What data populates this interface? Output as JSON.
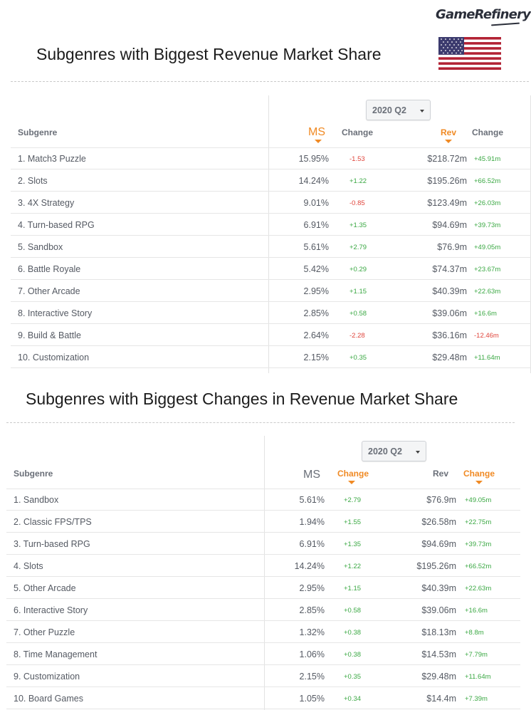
{
  "brand": {
    "logo_text": "GameRefinery"
  },
  "flag": {
    "country": "United States",
    "icon": "us-flag-icon"
  },
  "colors": {
    "accent": "#f08a24",
    "positive": "#3aa843",
    "negative": "#e0453c"
  },
  "table1": {
    "title": "Subgenres with Biggest Revenue Market Share",
    "period": "2020 Q2",
    "headers": {
      "subgenre": "Subgenre",
      "ms": "MS",
      "ms_change": "Change",
      "rev": "Rev",
      "rev_change": "Change"
    },
    "sorted_by": "MS",
    "rows": [
      {
        "subgenre": "1. Match3 Puzzle",
        "ms": "15.95%",
        "ms_change": "-1.53",
        "rev": "$218.72m",
        "rev_change": "+45.91m"
      },
      {
        "subgenre": "2. Slots",
        "ms": "14.24%",
        "ms_change": "+1.22",
        "rev": "$195.26m",
        "rev_change": "+66.52m"
      },
      {
        "subgenre": "3. 4X Strategy",
        "ms": "9.01%",
        "ms_change": "-0.85",
        "rev": "$123.49m",
        "rev_change": "+26.03m"
      },
      {
        "subgenre": "4. Turn-based RPG",
        "ms": "6.91%",
        "ms_change": "+1.35",
        "rev": "$94.69m",
        "rev_change": "+39.73m"
      },
      {
        "subgenre": "5. Sandbox",
        "ms": "5.61%",
        "ms_change": "+2.79",
        "rev": "$76.9m",
        "rev_change": "+49.05m"
      },
      {
        "subgenre": "6. Battle Royale",
        "ms": "5.42%",
        "ms_change": "+0.29",
        "rev": "$74.37m",
        "rev_change": "+23.67m"
      },
      {
        "subgenre": "7. Other Arcade",
        "ms": "2.95%",
        "ms_change": "+1.15",
        "rev": "$40.39m",
        "rev_change": "+22.63m"
      },
      {
        "subgenre": "8. Interactive Story",
        "ms": "2.85%",
        "ms_change": "+0.58",
        "rev": "$39.06m",
        "rev_change": "+16.6m"
      },
      {
        "subgenre": "9. Build & Battle",
        "ms": "2.64%",
        "ms_change": "-2.28",
        "rev": "$36.16m",
        "rev_change": "-12.46m"
      },
      {
        "subgenre": "10. Customization",
        "ms": "2.15%",
        "ms_change": "+0.35",
        "rev": "$29.48m",
        "rev_change": "+11.64m"
      }
    ]
  },
  "table2": {
    "title": "Subgenres with Biggest Changes in Revenue Market Share",
    "period": "2020 Q2",
    "headers": {
      "subgenre": "Subgenre",
      "ms": "MS",
      "ms_change": "Change",
      "rev": "Rev",
      "rev_change": "Change"
    },
    "sorted_by": "Change",
    "rows": [
      {
        "subgenre": "1. Sandbox",
        "ms": "5.61%",
        "ms_change": "+2.79",
        "rev": "$76.9m",
        "rev_change": "+49.05m"
      },
      {
        "subgenre": "2. Classic FPS/TPS",
        "ms": "1.94%",
        "ms_change": "+1.55",
        "rev": "$26.58m",
        "rev_change": "+22.75m"
      },
      {
        "subgenre": "3. Turn-based RPG",
        "ms": "6.91%",
        "ms_change": "+1.35",
        "rev": "$94.69m",
        "rev_change": "+39.73m"
      },
      {
        "subgenre": "4. Slots",
        "ms": "14.24%",
        "ms_change": "+1.22",
        "rev": "$195.26m",
        "rev_change": "+66.52m"
      },
      {
        "subgenre": "5. Other Arcade",
        "ms": "2.95%",
        "ms_change": "+1.15",
        "rev": "$40.39m",
        "rev_change": "+22.63m"
      },
      {
        "subgenre": "6. Interactive Story",
        "ms": "2.85%",
        "ms_change": "+0.58",
        "rev": "$39.06m",
        "rev_change": "+16.6m"
      },
      {
        "subgenre": "7. Other Puzzle",
        "ms": "1.32%",
        "ms_change": "+0.38",
        "rev": "$18.13m",
        "rev_change": "+8.8m"
      },
      {
        "subgenre": "8. Time Management",
        "ms": "1.06%",
        "ms_change": "+0.38",
        "rev": "$14.53m",
        "rev_change": "+7.79m"
      },
      {
        "subgenre": "9. Customization",
        "ms": "2.15%",
        "ms_change": "+0.35",
        "rev": "$29.48m",
        "rev_change": "+11.64m"
      },
      {
        "subgenre": "10. Board Games",
        "ms": "1.05%",
        "ms_change": "+0.34",
        "rev": "$14.4m",
        "rev_change": "+7.39m"
      }
    ]
  }
}
